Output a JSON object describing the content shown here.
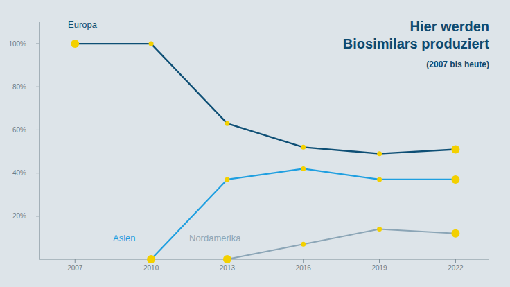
{
  "chart_data": {
    "type": "line",
    "title": "Hier werden Biosimilars produziert",
    "subtitle": "(2007 bis heute)",
    "x": [
      2007,
      2010,
      2013,
      2016,
      2019,
      2022
    ],
    "series": [
      {
        "name": "Europa",
        "color": "#0e4f75",
        "values": [
          100,
          100,
          63,
          52,
          49,
          51
        ]
      },
      {
        "name": "Asien",
        "color": "#1f9fe0",
        "values": [
          null,
          0,
          37,
          42,
          37,
          37
        ]
      },
      {
        "name": "Nordamerika",
        "color": "#8ba5b6",
        "values": [
          null,
          null,
          0,
          7,
          14,
          12
        ]
      }
    ],
    "xlim": [
      2005.6,
      2023.3
    ],
    "xticks": [
      2007,
      2010,
      2013,
      2016,
      2019,
      2022
    ],
    "ylim": [
      0,
      110
    ],
    "yticks": [
      {
        "value": 20,
        "label": "20%"
      },
      {
        "value": 40,
        "label": "40%"
      },
      {
        "value": 60,
        "label": "60%"
      },
      {
        "value": 80,
        "label": "80%"
      },
      {
        "value": 100,
        "label": "100%"
      }
    ],
    "grid": false,
    "marker": "circle",
    "line_style": "solid"
  }
}
